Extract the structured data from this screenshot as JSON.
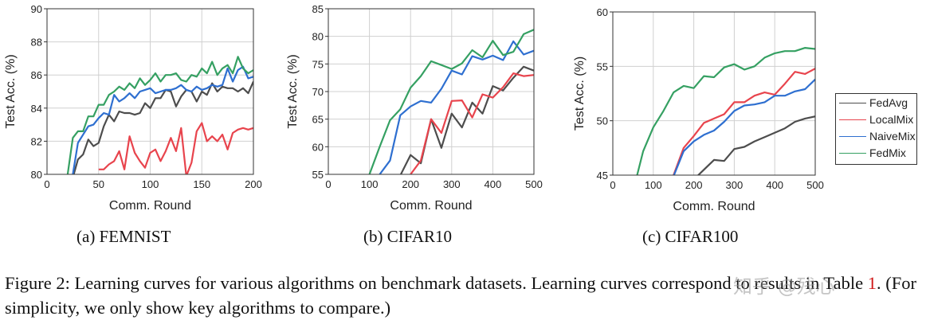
{
  "figure": {
    "subcaptions": [
      "(a) FEMNIST",
      "(b) CIFAR10",
      "(c) CIFAR100"
    ],
    "caption_part1": "Figure 2: Learning curves for various algorithms on benchmark datasets. Learning curves correspond to results in Table ",
    "caption_ref": "1",
    "caption_part2": ". (For simplicity, we only show key algorithms to compare.)",
    "watermark": "知乎 @残心"
  },
  "legend": [
    {
      "name": "FedAvg",
      "color": "#4d4d4d"
    },
    {
      "name": "LocalMix",
      "color": "#e8444d"
    },
    {
      "name": "NaiveMix",
      "color": "#2e6fd0"
    },
    {
      "name": "FedMix",
      "color": "#35a062"
    }
  ],
  "chart_data": [
    {
      "type": "line",
      "title": "(a) FEMNIST",
      "xlabel": "Comm. Round",
      "ylabel": "Test Acc. (%)",
      "xlim": [
        0,
        200
      ],
      "ylim": [
        80,
        90
      ],
      "xticks": [
        0,
        50,
        100,
        150,
        200
      ],
      "yticks": [
        80,
        82,
        84,
        86,
        88,
        90
      ],
      "grid": true,
      "x": [
        20,
        25,
        30,
        35,
        40,
        45,
        50,
        55,
        60,
        65,
        70,
        75,
        80,
        85,
        90,
        95,
        100,
        105,
        110,
        115,
        120,
        125,
        130,
        135,
        140,
        145,
        150,
        155,
        160,
        165,
        170,
        175,
        180,
        185,
        190,
        195,
        200
      ],
      "series": [
        {
          "name": "FedAvg",
          "values": [
            null,
            79.8,
            80.9,
            81.2,
            82.1,
            81.7,
            81.9,
            82.9,
            83.6,
            83.2,
            83.8,
            83.7,
            83.7,
            83.6,
            83.7,
            84.3,
            84.0,
            84.6,
            84.6,
            85.1,
            85.0,
            84.1,
            84.7,
            85.1,
            85.0,
            84.4,
            85.0,
            84.8,
            85.5,
            85.0,
            85.3,
            85.2,
            85.2,
            85.0,
            85.2,
            84.9,
            85.6
          ]
        },
        {
          "name": "LocalMix",
          "values": [
            null,
            null,
            null,
            null,
            null,
            null,
            80.3,
            80.3,
            80.6,
            80.8,
            81.4,
            80.3,
            82.3,
            81.3,
            80.8,
            80.4,
            81.3,
            81.5,
            80.8,
            81.4,
            82.2,
            81.4,
            82.8,
            79.9,
            80.7,
            82.6,
            83.1,
            82.0,
            82.3,
            82.0,
            82.4,
            81.5,
            82.5,
            82.7,
            82.8,
            82.7,
            82.8
          ]
        },
        {
          "name": "NaiveMix",
          "values": [
            null,
            80.0,
            81.9,
            82.4,
            82.9,
            83.0,
            83.4,
            83.7,
            83.6,
            84.8,
            84.4,
            84.6,
            84.9,
            84.6,
            85.0,
            85.1,
            85.2,
            84.9,
            85.0,
            85.1,
            85.1,
            85.2,
            85.4,
            85.1,
            85.0,
            85.3,
            85.1,
            85.2,
            85.4,
            85.3,
            85.4,
            86.4,
            85.6,
            86.3,
            86.5,
            85.8,
            85.9
          ]
        },
        {
          "name": "FedMix",
          "values": [
            80.0,
            82.2,
            82.6,
            82.6,
            83.5,
            83.5,
            84.2,
            84.2,
            84.8,
            85.0,
            85.3,
            85.1,
            85.5,
            85.2,
            85.8,
            85.4,
            85.7,
            86.1,
            85.6,
            86.0,
            86.0,
            86.1,
            85.7,
            85.6,
            86.0,
            85.9,
            86.4,
            86.1,
            86.8,
            86.0,
            86.4,
            86.6,
            86.1,
            87.1,
            86.4,
            86.1,
            86.3
          ]
        }
      ]
    },
    {
      "type": "line",
      "title": "(b) CIFAR10",
      "xlabel": "Comm. Round",
      "ylabel": "Test Acc. (%)",
      "xlim": [
        0,
        500
      ],
      "ylim": [
        55,
        85
      ],
      "xticks": [
        0,
        100,
        200,
        300,
        400,
        500
      ],
      "yticks": [
        55,
        60,
        65,
        70,
        75,
        80,
        85
      ],
      "grid": true,
      "x": [
        100,
        125,
        150,
        175,
        200,
        225,
        250,
        275,
        300,
        325,
        350,
        375,
        400,
        425,
        450,
        475,
        500
      ],
      "series": [
        {
          "name": "FedAvg",
          "values": [
            null,
            null,
            null,
            54.8,
            58.5,
            57.0,
            65.0,
            59.8,
            66.0,
            63.5,
            68.0,
            66.0,
            71.0,
            70.2,
            72.5,
            74.5,
            73.8
          ]
        },
        {
          "name": "LocalMix",
          "values": [
            null,
            null,
            null,
            null,
            55.0,
            57.5,
            65.0,
            62.5,
            68.3,
            68.4,
            65.3,
            69.5,
            68.9,
            70.8,
            73.3,
            72.8,
            73.0
          ]
        },
        {
          "name": "NaiveMix",
          "values": [
            null,
            55.0,
            57.5,
            65.7,
            67.3,
            68.3,
            68.0,
            70.5,
            73.8,
            73.1,
            76.4,
            75.8,
            76.5,
            75.7,
            79.1,
            76.7,
            77.4
          ]
        },
        {
          "name": "FedMix",
          "values": [
            55.0,
            60.0,
            64.8,
            66.8,
            70.7,
            72.8,
            75.5,
            74.8,
            74.1,
            75.1,
            77.5,
            76.2,
            79.2,
            76.6,
            77.2,
            80.4,
            81.2
          ]
        }
      ]
    },
    {
      "type": "line",
      "title": "(c) CIFAR100",
      "xlabel": "Comm. Round",
      "ylabel": "Test Acc. (%)",
      "xlim": [
        0,
        500
      ],
      "ylim": [
        45,
        60
      ],
      "xticks": [
        0,
        100,
        200,
        300,
        400,
        500
      ],
      "yticks": [
        45,
        50,
        55,
        60
      ],
      "grid": true,
      "x": [
        60,
        75,
        100,
        125,
        150,
        175,
        200,
        225,
        250,
        275,
        300,
        325,
        350,
        375,
        400,
        425,
        450,
        475,
        500
      ],
      "series": [
        {
          "name": "FedAvg",
          "values": [
            null,
            null,
            null,
            null,
            null,
            null,
            44.6,
            45.5,
            46.4,
            46.3,
            47.4,
            47.6,
            48.1,
            48.5,
            48.9,
            49.3,
            49.9,
            50.2,
            50.4
          ]
        },
        {
          "name": "LocalMix",
          "values": [
            null,
            null,
            null,
            null,
            45.0,
            47.5,
            48.6,
            49.8,
            50.2,
            50.6,
            51.7,
            51.7,
            52.3,
            52.6,
            52.4,
            53.4,
            54.5,
            54.3,
            54.8
          ]
        },
        {
          "name": "NaiveMix",
          "values": [
            null,
            null,
            null,
            null,
            44.9,
            47.2,
            48.1,
            48.7,
            49.1,
            49.9,
            50.9,
            51.4,
            51.5,
            51.7,
            52.3,
            52.3,
            52.7,
            52.9,
            53.8
          ]
        },
        {
          "name": "FedMix",
          "values": [
            45.0,
            47.2,
            49.4,
            50.9,
            52.6,
            53.2,
            53.0,
            54.1,
            54.0,
            54.9,
            55.2,
            54.7,
            55.0,
            55.8,
            56.2,
            56.4,
            56.4,
            56.7,
            56.6
          ]
        }
      ]
    }
  ]
}
